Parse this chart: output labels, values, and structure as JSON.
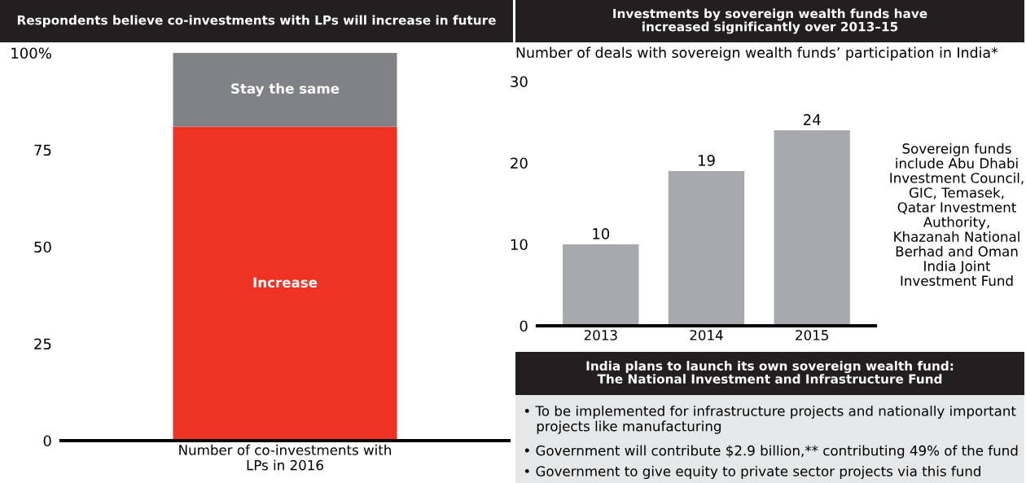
{
  "chart_data": [
    {
      "type": "bar",
      "title": "Respondents believe co-investments with LPs will increase in future",
      "stacked": true,
      "categories": [
        "Number of co-investments with\nLPs in 2016"
      ],
      "series": [
        {
          "name": "Increase",
          "color": "#ee3224",
          "values": [
            81
          ]
        },
        {
          "name": "Stay the same",
          "color": "#808285",
          "values": [
            19
          ]
        }
      ],
      "ylim": [
        0,
        100
      ],
      "yticks": [
        0,
        25,
        50,
        75,
        {
          "value": 100,
          "label": "100%"
        }
      ],
      "grid": false,
      "legend": false
    },
    {
      "type": "bar",
      "title": "Investments by sovereign wealth funds have\nincreased significantly over 2013–15",
      "subtitle": "Number of deals with sovereign wealth funds’ participation in India*",
      "categories": [
        "2013",
        "2014",
        "2015"
      ],
      "values": [
        10,
        19,
        24
      ],
      "color": "#a7a9ac",
      "data_labels": true,
      "ylim": [
        0,
        30
      ],
      "yticks": [
        0,
        10,
        20,
        30
      ],
      "grid": false,
      "legend": false,
      "annotations": [
        "Sovereign funds\ninclude Abu Dhabi\nInvestment Council,\nGIC, Temasek,\nQatar Investment\nAuthority,\nKhazanah National\nBerhad and Oman\nIndia Joint\nInvestment Fund"
      ]
    },
    {
      "type": "other",
      "title": "India plans to launch its own sovereign wealth fund:\nThe National Investment and Infrastructure Fund",
      "annotations": [
        "• To be implemented for infrastructure projects and nationally important\n   projects like manufacturing",
        "• Government will contribute $2.9 billion,** contributing 49% of the fund",
        "• Government to give equity to private sector projects via this fund"
      ]
    }
  ]
}
